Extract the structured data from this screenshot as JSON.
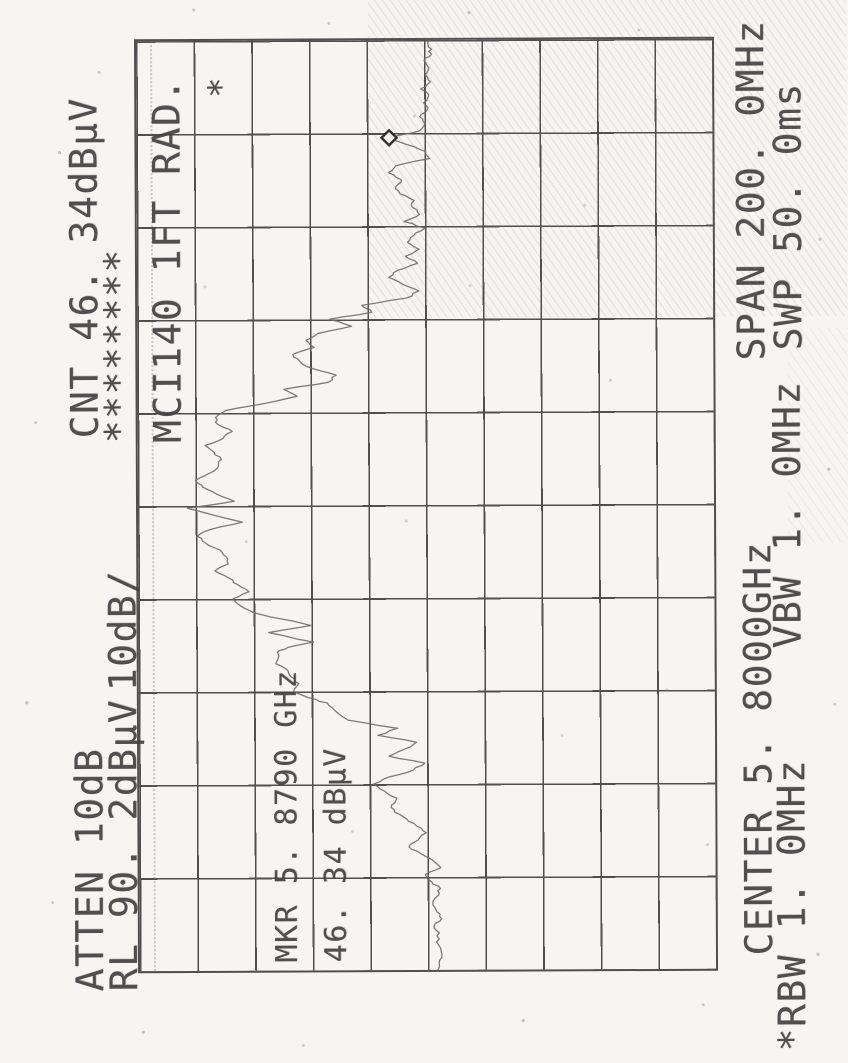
{
  "colors": {
    "paper": "#f6f5f1",
    "ink": "#424242",
    "grid": "#4f4f4f",
    "trace": "#6e6e6e",
    "marker": "#2e2e2e"
  },
  "readouts": {
    "atten": "ATTEN 10dB",
    "ref_level": "RL 90. 2dBμV",
    "scale": "10dB/",
    "counter": "CNT 46. 34dBμV",
    "flags": "********",
    "trace_title": "MCI140 1FT RAD.",
    "grid_flag": "*",
    "marker_line1": "MKR 5. 8790 GHz",
    "marker_line2": "46. 34 dBμV",
    "center": "CENTER 5. 8000GHz",
    "span": "SPAN 200. 0MHz",
    "rbw": "*RBW 1. 0MHz",
    "vbw": "VBW 1. 0MHz",
    "sweep": "SWP 50. 0ms"
  },
  "chart_data": {
    "type": "line",
    "title": "MCI140 1FT RAD.",
    "xlabel": "",
    "ylabel": "",
    "x_range": [
      5.7,
      5.9
    ],
    "y_range": [
      -9.8,
      90.2
    ],
    "ref_level_dbuv": 90.2,
    "scale_db_per_div": 10,
    "center_ghz": 5.8,
    "span_mhz": 200.0,
    "rbw_mhz": 1.0,
    "vbw_mhz": 1.0,
    "sweep_ms": 50.0,
    "attenuation_db": 10,
    "counter_dbuv": 46.34,
    "grid_divisions": "10x10",
    "marker": {
      "freq_ghz": 5.879,
      "amp_dbuv": 46.34
    },
    "x": [
      5.7,
      5.702,
      5.704,
      5.706,
      5.708,
      5.7095,
      5.711,
      5.7125,
      5.714,
      5.716,
      5.7175,
      5.719,
      5.7205,
      5.722,
      5.7235,
      5.725,
      5.7265,
      5.728,
      5.7295,
      5.731,
      5.7325,
      5.734,
      5.7355,
      5.737,
      5.7385,
      5.74,
      5.7415,
      5.743,
      5.7445,
      5.746,
      5.7475,
      5.749,
      5.7505,
      5.752,
      5.7538,
      5.756,
      5.7575,
      5.7587,
      5.76,
      5.7617,
      5.7632,
      5.7645,
      5.766,
      5.7685,
      5.7695,
      5.7706,
      5.7727,
      5.7742,
      5.777,
      5.7785,
      5.78,
      5.7815,
      5.783,
      5.7845,
      5.786,
      5.7875,
      5.789,
      5.7905,
      5.792,
      5.7935,
      5.795,
      5.7965,
      5.798,
      5.7995,
      5.801,
      5.8025,
      5.804,
      5.8055,
      5.807,
      5.8085,
      5.81,
      5.8115,
      5.813,
      5.8145,
      5.816,
      5.8175,
      5.819,
      5.8205,
      5.822,
      5.8235,
      5.825,
      5.8265,
      5.828,
      5.8295,
      5.831,
      5.8325,
      5.834,
      5.8355,
      5.837,
      5.8385,
      5.84,
      5.8415,
      5.843,
      5.8445,
      5.846,
      5.8475,
      5.849,
      5.8505,
      5.852,
      5.8535,
      5.855,
      5.8565,
      5.858,
      5.8595,
      5.861,
      5.8625,
      5.864,
      5.8655,
      5.867,
      5.8685,
      5.87,
      5.8715,
      5.873,
      5.8745,
      5.876,
      5.8775,
      5.879,
      5.8805,
      5.882,
      5.8835,
      5.885,
      5.8865,
      5.888,
      5.8895,
      5.891,
      5.8925,
      5.894,
      5.8955,
      5.897,
      5.8985,
      5.9
    ],
    "series": [
      {
        "name": "trace",
        "values": [
          38.5,
          38.2,
          37.9,
          38.7,
          38.2,
          39.1,
          37.8,
          38.6,
          39.3,
          38.4,
          38.0,
          39.5,
          40.6,
          37.9,
          39.2,
          41.3,
          43.4,
          41.8,
          40.4,
          42.1,
          43.8,
          45.9,
          46.4,
          45.5,
          47.6,
          49.6,
          46.9,
          42.6,
          40.6,
          46.8,
          44.1,
          42.0,
          48.7,
          45.3,
          53.9,
          56.3,
          57.5,
          60.9,
          63.3,
          62.4,
          63.8,
          64.3,
          66.4,
          66.1,
          64.3,
          59.8,
          67.6,
          60.3,
          70.2,
          72.5,
          73.8,
          71.0,
          72.9,
          74.5,
          76.9,
          74.6,
          74.9,
          76.0,
          78.5,
          79.9,
          77.5,
          72.1,
          77.0,
          81.6,
          73.5,
          76.5,
          78.9,
          80.2,
          77.8,
          76.2,
          75.7,
          76.9,
          78.5,
          75.4,
          73.8,
          76.3,
          76.7,
          74.9,
          68.0,
          62.5,
          64.8,
          57.0,
          55.7,
          60.0,
          62.0,
          63.2,
          59.5,
          60.9,
          58.8,
          53.0,
          56.8,
          49.5,
          51.2,
          43.5,
          41.3,
          44.1,
          46.5,
          44.9,
          41.5,
          43.6,
          41.2,
          43.2,
          42.1,
          40.2,
          43.8,
          41.1,
          42.3,
          42.0,
          44.5,
          45.2,
          44.3,
          46.5,
          45.2,
          39.3,
          40.0,
          43.2,
          46.3,
          41.0,
          40.1,
          41.0,
          39.7,
          40.3,
          39.4,
          40.8,
          39.1,
          40.0,
          39.4,
          40.2,
          38.9,
          39.4,
          39.2
        ]
      }
    ],
    "legend": []
  }
}
